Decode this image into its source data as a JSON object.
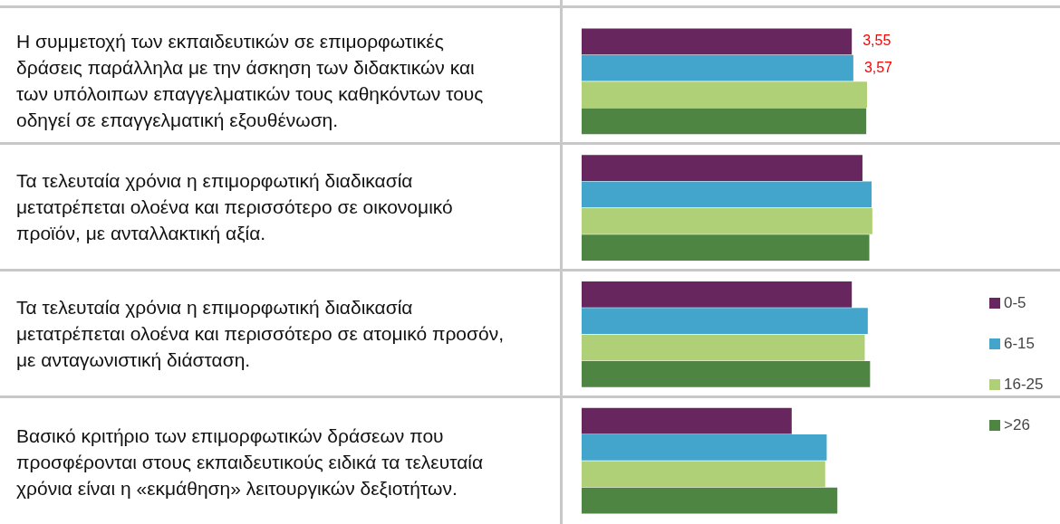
{
  "chart_data": {
    "type": "bar",
    "orientation": "horizontal",
    "categories": [
      "Η συμμετοχή των εκπαιδευτικών σε επιμορφωτικές δράσεις παράλληλα με την άσκηση των διδακτικών και των υπόλοιπων επαγγελματικών τους καθηκόντων τους οδηγεί σε επαγγελματική εξουθένωση.",
      "Τα τελευταία χρόνια  η επιμορφωτική διαδικασία μετατρέπεται ολοένα και περισσότερο σε οικονομικό προϊόν, με ανταλλακτική αξία.",
      "Τα τελευταία χρόνια  η επιμορφωτική διαδικασία μετατρέπεται ολοένα και περισσότερο σε ατομικό προσόν, με ανταγωνιστική διάσταση.",
      "Βασικό κριτήριο των επιμορφωτικών δράσεων που προσφέρονται στους εκπαιδευτικούς ειδικά τα τελευταία χρόνια είναι η «εκμάθηση» λειτουργικών δεξιοτήτων."
    ],
    "series": [
      {
        "name": "0-5",
        "color": "#67275e",
        "values": [
          3.55,
          3.69,
          3.55,
          2.76
        ],
        "value_labels": [
          "3,55",
          null,
          null,
          null
        ]
      },
      {
        "name": "6-15",
        "color": "#43a5cc",
        "values": [
          3.57,
          3.81,
          3.76,
          3.22
        ],
        "value_labels": [
          "3,57",
          null,
          null,
          null
        ]
      },
      {
        "name": "16-25",
        "color": "#b0d077",
        "values": [
          3.75,
          3.82,
          3.72,
          3.2
        ]
      },
      {
        "name": ">26",
        "color": "#4e8542",
        "values": [
          3.74,
          3.78,
          3.79,
          3.36
        ]
      }
    ],
    "tick_labels": false,
    "grid": false,
    "legend": "right"
  }
}
